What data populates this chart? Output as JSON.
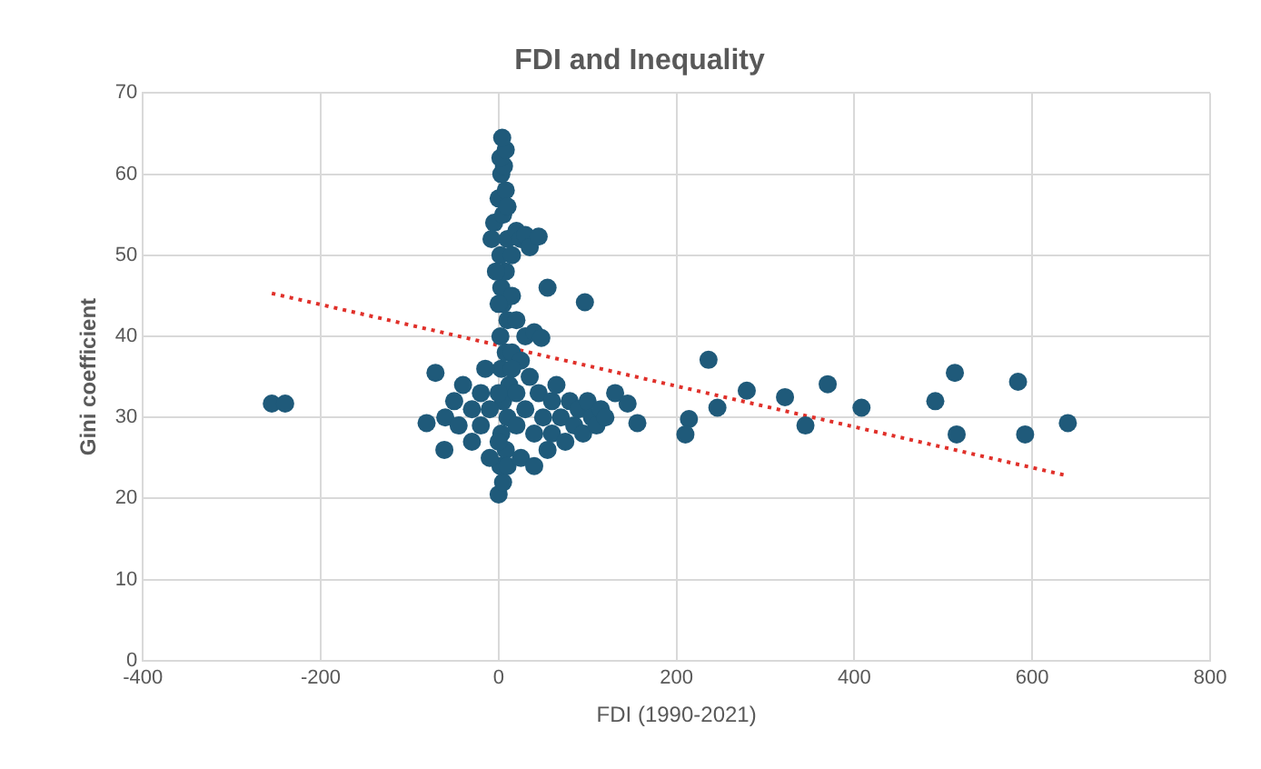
{
  "chart_data": {
    "type": "scatter",
    "title": "FDI and Inequality",
    "xlabel": "FDI (1990-2021)",
    "ylabel": "Gini coefficient",
    "xlim": [
      -400,
      800
    ],
    "xticks": [
      -400,
      -200,
      0,
      200,
      400,
      600,
      800
    ],
    "ylim": [
      0,
      70
    ],
    "yticks": [
      0,
      10,
      20,
      30,
      40,
      50,
      60,
      70
    ],
    "grid": true,
    "legend": false,
    "series": [
      {
        "color": "#1f5a7a",
        "marker": "circle",
        "x": [
          0,
          5,
          2,
          8,
          3,
          10,
          5,
          12,
          3,
          8,
          2,
          10,
          5,
          3,
          8,
          2,
          10,
          -5,
          5,
          0,
          8,
          3,
          6,
          2,
          8,
          4,
          10,
          15,
          20,
          25,
          30,
          35,
          45,
          15,
          20,
          30,
          40,
          48,
          15,
          25,
          -3,
          -8,
          0,
          -71,
          -81,
          -61,
          -60,
          -50,
          -40,
          -45,
          -30,
          -30,
          -20,
          -20,
          -15,
          -10,
          -10,
          0,
          0,
          10,
          15,
          20,
          20,
          25,
          30,
          35,
          40,
          40,
          45,
          50,
          55,
          60,
          60,
          65,
          70,
          75,
          80,
          85,
          90,
          95,
          100,
          105,
          110,
          115,
          120,
          131,
          145,
          156,
          55,
          97,
          214,
          210,
          -255,
          -240,
          236,
          246,
          279,
          322,
          345,
          370,
          408,
          491,
          513,
          515,
          584,
          592,
          640
        ],
        "values": [
          20.5,
          22,
          24,
          26,
          28,
          30,
          32,
          34,
          36,
          38,
          40,
          42,
          44,
          46,
          48,
          50,
          52,
          54,
          55,
          57,
          58,
          60,
          61,
          62,
          63,
          64.5,
          56,
          50,
          53,
          52,
          52.5,
          51,
          52.3,
          45,
          42,
          40,
          40.5,
          39.8,
          38,
          37,
          48,
          52,
          44,
          35.5,
          29.3,
          26,
          30,
          32,
          34,
          29,
          31,
          27,
          33,
          29,
          36,
          25,
          31,
          33,
          27,
          24,
          36,
          29,
          33,
          25,
          31,
          35,
          28,
          24,
          33,
          30,
          26,
          32,
          28,
          34,
          30,
          27,
          32,
          29,
          31,
          28,
          32,
          30,
          29,
          31,
          30,
          33,
          31.7,
          29.3,
          46,
          44.2,
          29.8,
          27.9,
          31.7,
          31.7,
          37.1,
          31.2,
          33.3,
          32.5,
          29,
          34.1,
          31.2,
          32,
          35.5,
          27.9,
          34.4,
          27.9,
          29.3
        ]
      },
      {
        "type": "line",
        "color": "#e0302a",
        "marker": "none",
        "line_style": "dotted",
        "x": [
          -255,
          640
        ],
        "values": [
          45.3,
          22.8
        ]
      }
    ]
  }
}
